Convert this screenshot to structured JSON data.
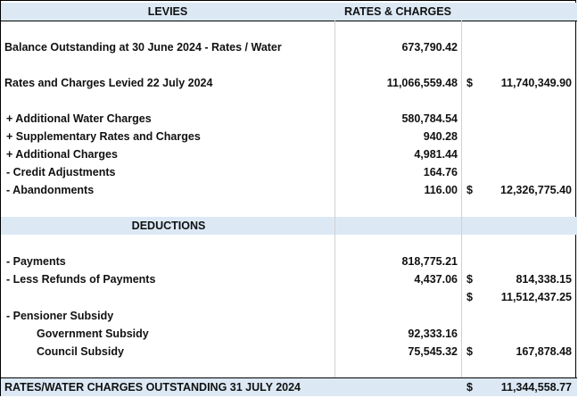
{
  "header": {
    "levies_label": "LEVIES",
    "rates_label": "RATES & CHARGES"
  },
  "rows": {
    "balance": {
      "label": "Balance Outstanding at 30 June 2024 - Rates / Water",
      "amount": "673,790.42"
    },
    "levied": {
      "label": "Rates and Charges Levied 22 July 2024",
      "amount": "11,066,559.48",
      "dollar": "$",
      "total": "11,740,349.90"
    },
    "add_water": {
      "label": "+ Additional Water Charges",
      "amount": "580,784.54"
    },
    "supplementary": {
      "label": "+ Supplementary Rates and Charges",
      "amount": "940.28"
    },
    "add_charges": {
      "label": "+ Additional Charges",
      "amount": "4,981.44"
    },
    "credit_adj": {
      "label": "- Credit Adjustments",
      "amount": "164.76"
    },
    "abandonments": {
      "label": "- Abandonments",
      "amount": "116.00",
      "dollar": "$",
      "total": "12,326,775.40"
    },
    "deductions": {
      "label": "DEDUCTIONS"
    },
    "payments": {
      "label": "- Payments",
      "amount": "818,775.21"
    },
    "refunds": {
      "label": "- Less Refunds of Payments",
      "amount": "4,437.06",
      "dollar": "$",
      "total": "814,338.15"
    },
    "subtotal": {
      "dollar": "$",
      "total": "11,512,437.25"
    },
    "pensioner": {
      "label": "- Pensioner Subsidy"
    },
    "gov_subsidy": {
      "label": "Government Subsidy",
      "amount": "92,333.16"
    },
    "council_subsidy": {
      "label": "Council Subsidy",
      "amount": "75,545.32",
      "dollar": "$",
      "total": "167,878.48"
    },
    "outstanding": {
      "label": "RATES/WATER CHARGES OUTSTANDING 31 JULY 2024",
      "dollar": "$",
      "total": "11,344,558.77"
    }
  },
  "colors": {
    "band": "#dce9f5",
    "border": "#000000",
    "grid": "#d0d0d0"
  }
}
